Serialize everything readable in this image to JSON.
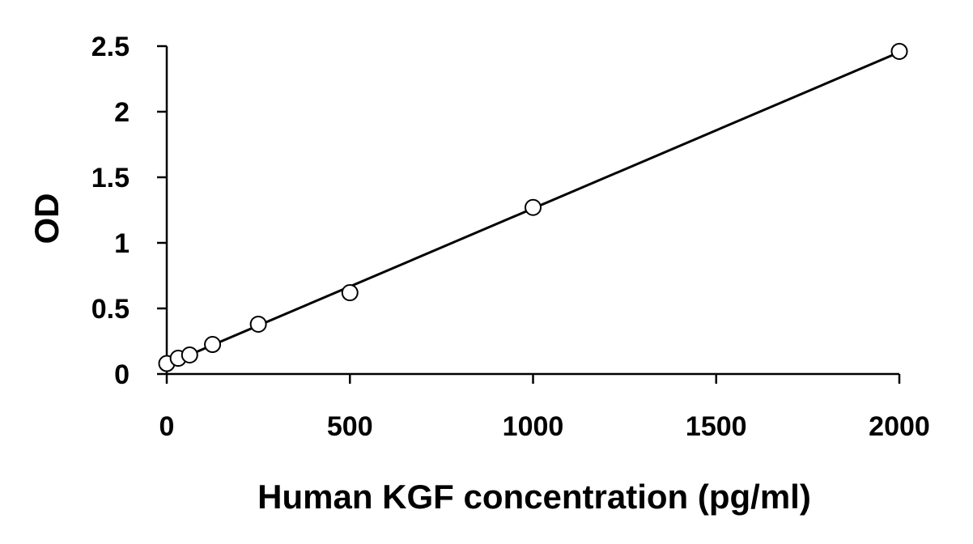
{
  "chart_data": {
    "type": "scatter",
    "title": "",
    "xlabel": "Human KGF concentration (pg/ml)",
    "ylabel": "OD",
    "xlim": [
      0,
      2000
    ],
    "ylim": [
      0,
      2.5
    ],
    "xticks": [
      "0",
      "500",
      "1000",
      "1500",
      "2000"
    ],
    "yticks": [
      "0",
      "0.5",
      "1",
      "1.5",
      "2",
      "2.5"
    ],
    "grid": false,
    "legend": "none",
    "marker": "open-circle",
    "trendline": "linear",
    "series": [
      {
        "x": [
          0,
          31.25,
          62.5,
          125,
          250,
          500,
          1000,
          2000
        ],
        "y": [
          0.08,
          0.12,
          0.145,
          0.225,
          0.38,
          0.62,
          1.27,
          2.46
        ]
      }
    ],
    "line_color": "#000000",
    "marker_fill": "#ffffff"
  }
}
